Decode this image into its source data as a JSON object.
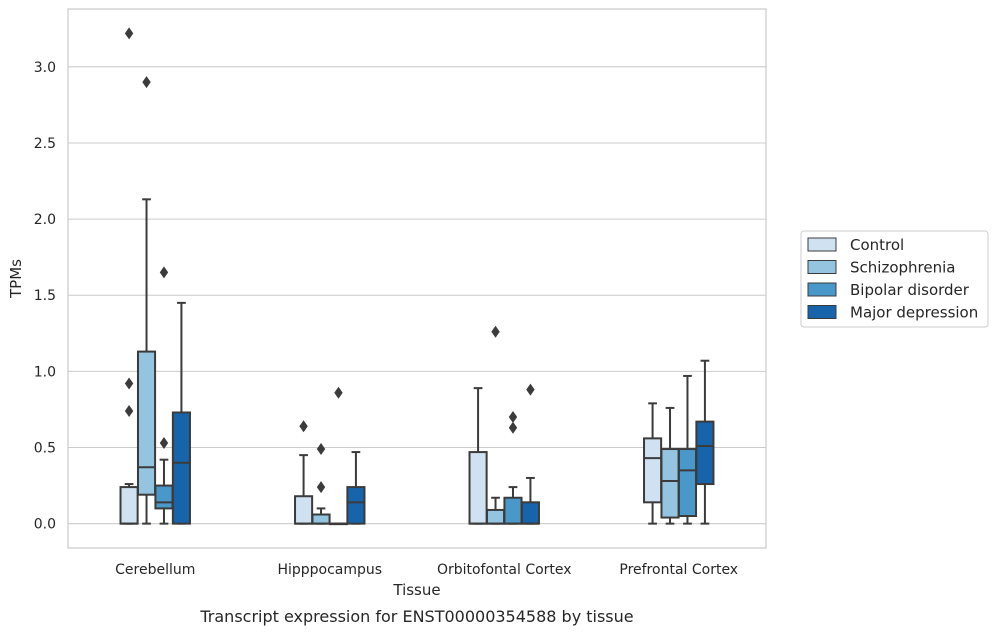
{
  "chart_data": {
    "type": "box",
    "caption": "Transcript expression for ENST00000354588 by tissue",
    "xlabel": "Tissue",
    "ylabel": "TPMs",
    "ylim": [
      -0.16,
      3.38
    ],
    "yticks": [
      0.0,
      0.5,
      1.0,
      1.5,
      2.0,
      2.5,
      3.0
    ],
    "ytick_labels": [
      "0.0",
      "0.5",
      "1.0",
      "1.5",
      "2.0",
      "2.5",
      "3.0"
    ],
    "grid": "horizontal",
    "legend_position": "right",
    "categories": [
      "Cerebellum",
      "Hipppocampus",
      "Orbitofontal Cortex",
      "Prefrontal Cortex"
    ],
    "series": [
      {
        "name": "Control",
        "color": "#d0e1f2",
        "boxes": [
          {
            "whislo": 0.0,
            "q1": 0.0,
            "med": 0.0,
            "q3": 0.24,
            "whishi": 0.26,
            "fliers": [
              0.74,
              0.92,
              3.22
            ]
          },
          {
            "whislo": 0.0,
            "q1": 0.0,
            "med": 0.0,
            "q3": 0.18,
            "whishi": 0.45,
            "fliers": [
              0.64
            ]
          },
          {
            "whislo": 0.0,
            "q1": 0.0,
            "med": 0.0,
            "q3": 0.47,
            "whishi": 0.89,
            "fliers": []
          },
          {
            "whislo": 0.0,
            "q1": 0.14,
            "med": 0.43,
            "q3": 0.56,
            "whishi": 0.79,
            "fliers": []
          }
        ]
      },
      {
        "name": "Schizophrenia",
        "color": "#94c4df",
        "boxes": [
          {
            "whislo": 0.0,
            "q1": 0.19,
            "med": 0.37,
            "q3": 1.13,
            "whishi": 2.13,
            "fliers": [
              2.9
            ]
          },
          {
            "whislo": 0.0,
            "q1": 0.0,
            "med": 0.0,
            "q3": 0.06,
            "whishi": 0.1,
            "fliers": [
              0.24,
              0.49
            ]
          },
          {
            "whislo": 0.0,
            "q1": 0.0,
            "med": 0.0,
            "q3": 0.09,
            "whishi": 0.17,
            "fliers": [
              1.26
            ]
          },
          {
            "whislo": 0.0,
            "q1": 0.04,
            "med": 0.28,
            "q3": 0.49,
            "whishi": 0.76,
            "fliers": []
          }
        ]
      },
      {
        "name": "Bipolar disorder",
        "color": "#4a98c9",
        "boxes": [
          {
            "whislo": 0.0,
            "q1": 0.1,
            "med": 0.14,
            "q3": 0.25,
            "whishi": 0.42,
            "fliers": [
              0.53,
              1.65
            ]
          },
          {
            "whislo": 0.0,
            "q1": 0.0,
            "med": 0.0,
            "q3": 0.0,
            "whishi": 0.0,
            "fliers": [
              0.86
            ]
          },
          {
            "whislo": 0.0,
            "q1": 0.0,
            "med": 0.0,
            "q3": 0.17,
            "whishi": 0.24,
            "fliers": [
              0.63,
              0.7
            ]
          },
          {
            "whislo": 0.0,
            "q1": 0.05,
            "med": 0.35,
            "q3": 0.49,
            "whishi": 0.97,
            "fliers": []
          }
        ]
      },
      {
        "name": "Major depression",
        "color": "#1764ab",
        "boxes": [
          {
            "whislo": 0.0,
            "q1": 0.0,
            "med": 0.4,
            "q3": 0.73,
            "whishi": 1.45,
            "fliers": []
          },
          {
            "whislo": 0.0,
            "q1": 0.0,
            "med": 0.14,
            "q3": 0.24,
            "whishi": 0.47,
            "fliers": []
          },
          {
            "whislo": 0.0,
            "q1": 0.0,
            "med": 0.0,
            "q3": 0.14,
            "whishi": 0.3,
            "fliers": [
              0.88
            ]
          },
          {
            "whislo": 0.0,
            "q1": 0.26,
            "med": 0.51,
            "q3": 0.67,
            "whishi": 1.07,
            "fliers": []
          }
        ]
      }
    ]
  }
}
